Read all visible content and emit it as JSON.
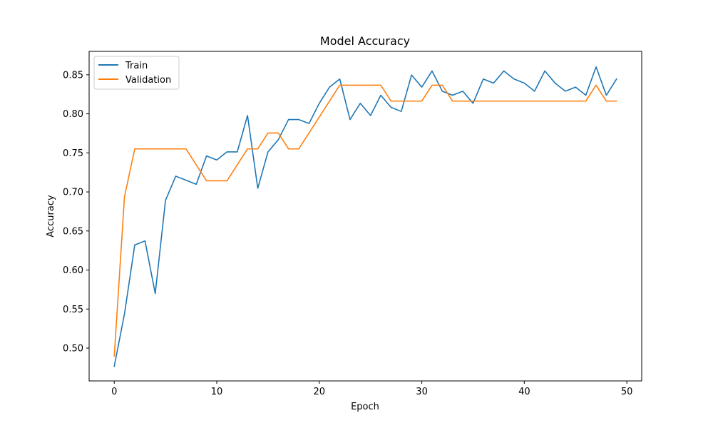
{
  "chart_data": {
    "type": "line",
    "title": "Model Accuracy",
    "xlabel": "Epoch",
    "ylabel": "Accuracy",
    "xlim": [
      -2.45,
      51.45
    ],
    "ylim": [
      0.458,
      0.88
    ],
    "xticks": [
      0,
      10,
      20,
      30,
      40,
      50
    ],
    "yticks": [
      0.5,
      0.55,
      0.6,
      0.65,
      0.7,
      0.75,
      0.8,
      0.85
    ],
    "grid": false,
    "legend_position": "upper left",
    "x": [
      0,
      1,
      2,
      3,
      4,
      5,
      6,
      7,
      8,
      9,
      10,
      11,
      12,
      13,
      14,
      15,
      16,
      17,
      18,
      19,
      20,
      21,
      22,
      23,
      24,
      25,
      26,
      27,
      28,
      29,
      30,
      31,
      32,
      33,
      34,
      35,
      36,
      37,
      38,
      39,
      40,
      41,
      42,
      43,
      44,
      45,
      46,
      47,
      48,
      49
    ],
    "series": [
      {
        "name": "Train",
        "color": "#1f77b4",
        "values": [
          0.4767,
          0.544,
          0.6321,
          0.6373,
          0.5699,
          0.6891,
          0.7202,
          0.715,
          0.7098,
          0.7461,
          0.7409,
          0.7513,
          0.7513,
          0.7979,
          0.7047,
          0.7513,
          0.7668,
          0.7927,
          0.7927,
          0.7876,
          0.8135,
          0.8342,
          0.8446,
          0.7927,
          0.8135,
          0.7979,
          0.8238,
          0.8083,
          0.8031,
          0.8497,
          0.8342,
          0.8549,
          0.829,
          0.8238,
          0.829,
          0.8135,
          0.8446,
          0.8394,
          0.8549,
          0.8446,
          0.8394,
          0.829,
          0.8549,
          0.8394,
          0.829,
          0.8342,
          0.8238,
          0.8601,
          0.8238,
          0.8446
        ]
      },
      {
        "name": "Validation",
        "color": "#ff7f0e",
        "values": [
          0.4898,
          0.6939,
          0.7551,
          0.7551,
          0.7551,
          0.7551,
          0.7551,
          0.7551,
          0.7347,
          0.7143,
          0.7143,
          0.7143,
          0.7347,
          0.7551,
          0.7551,
          0.7755,
          0.7755,
          0.7551,
          0.7551,
          0.7755,
          0.7959,
          0.8163,
          0.8367,
          0.8367,
          0.8367,
          0.8367,
          0.8367,
          0.8163,
          0.8163,
          0.8163,
          0.8163,
          0.8367,
          0.8367,
          0.8163,
          0.8163,
          0.8163,
          0.8163,
          0.8163,
          0.8163,
          0.8163,
          0.8163,
          0.8163,
          0.8163,
          0.8163,
          0.8163,
          0.8163,
          0.8163,
          0.8367,
          0.8163,
          0.8163
        ]
      }
    ]
  }
}
